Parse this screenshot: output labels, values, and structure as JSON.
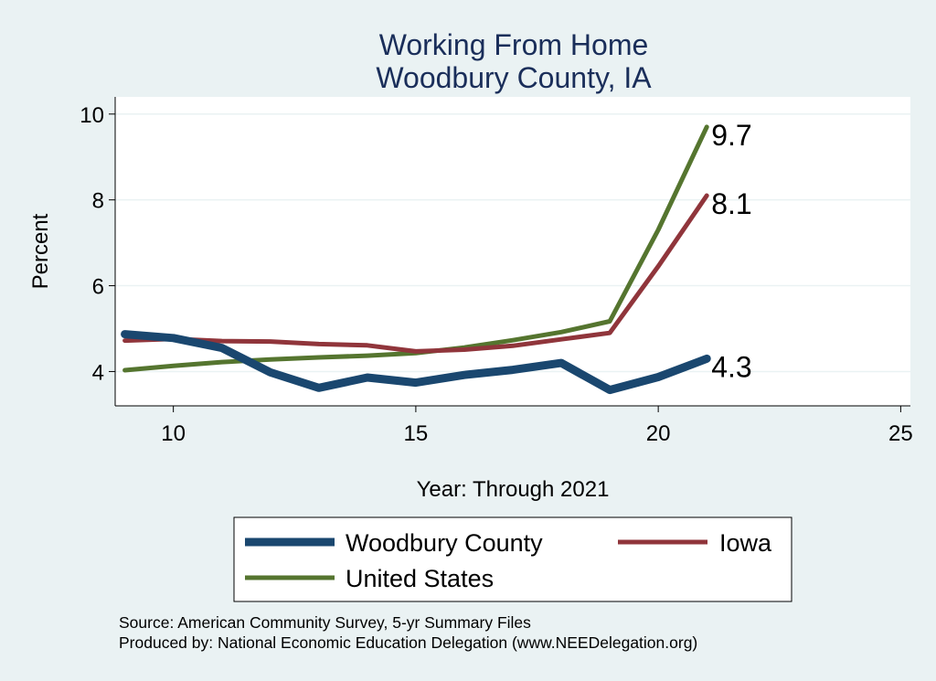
{
  "chart_data": {
    "type": "line",
    "title": [
      "Working From Home",
      "Woodbury County, IA"
    ],
    "xlabel": "Year: Through 2021",
    "ylabel": "Percent",
    "xlim": [
      8.8,
      25.2
    ],
    "ylim": [
      3.2,
      10.4
    ],
    "xticks": [
      10,
      15,
      20,
      25
    ],
    "yticks": [
      4,
      6,
      8,
      10
    ],
    "grid": true,
    "legend_position": "bottom",
    "series": [
      {
        "name": "Woodbury County",
        "color": "#1a476f",
        "x": [
          9,
          10,
          11,
          12,
          13,
          14,
          15,
          16,
          17,
          18,
          19,
          20,
          21
        ],
        "y": [
          4.87,
          4.78,
          4.55,
          3.98,
          3.62,
          3.86,
          3.74,
          3.92,
          4.04,
          4.2,
          3.57,
          3.87,
          4.3
        ],
        "end_label": "4.3"
      },
      {
        "name": "Iowa",
        "color": "#90353b",
        "x": [
          9,
          10,
          11,
          12,
          13,
          14,
          15,
          16,
          17,
          18,
          19,
          20,
          21
        ],
        "y": [
          4.72,
          4.76,
          4.71,
          4.7,
          4.64,
          4.61,
          4.47,
          4.51,
          4.6,
          4.75,
          4.9,
          6.45,
          8.1
        ],
        "end_label": "8.1"
      },
      {
        "name": "United States",
        "color": "#55752f",
        "x": [
          9,
          10,
          11,
          12,
          13,
          14,
          15,
          16,
          17,
          18,
          19,
          20,
          21
        ],
        "y": [
          4.03,
          4.13,
          4.22,
          4.28,
          4.33,
          4.37,
          4.43,
          4.56,
          4.73,
          4.92,
          5.17,
          7.3,
          9.7
        ],
        "end_label": "9.7"
      }
    ]
  },
  "notes": [
    "Source: American Community Survey, 5-yr Summary Files",
    "Produced by: National Economic Education Delegation (www.NEEDelegation.org)"
  ]
}
